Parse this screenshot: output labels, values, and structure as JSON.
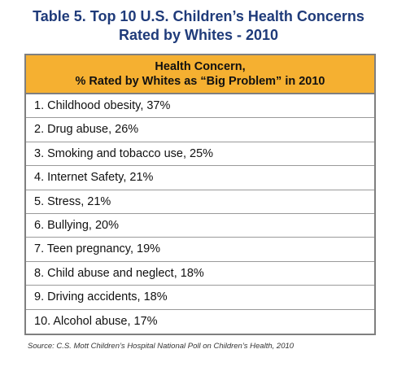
{
  "title": {
    "line1": "Table 5. Top 10 U.S. Children’s Health Concerns",
    "line2": "Rated by Whites - 2010"
  },
  "table": {
    "header_line1": "Health Concern,",
    "header_line2": "% Rated by Whites as “Big Problem” in 2010",
    "rows": [
      "1. Childhood obesity, 37%",
      "2. Drug abuse, 26%",
      "3. Smoking and tobacco use, 25%",
      "4. Internet Safety, 21%",
      "5. Stress,  21%",
      "6. Bullying, 20%",
      "7. Teen pregnancy, 19%",
      "8. Child abuse and neglect, 18%",
      "9. Driving accidents, 18%",
      "10. Alcohol abuse, 17%"
    ]
  },
  "source": "Source: C.S. Mott Children’s Hospital National Poll on Children’s Health, 2010",
  "colors": {
    "title": "#1f3b7a",
    "header_fill": "#f5b031",
    "border": "#7f7f7f"
  }
}
